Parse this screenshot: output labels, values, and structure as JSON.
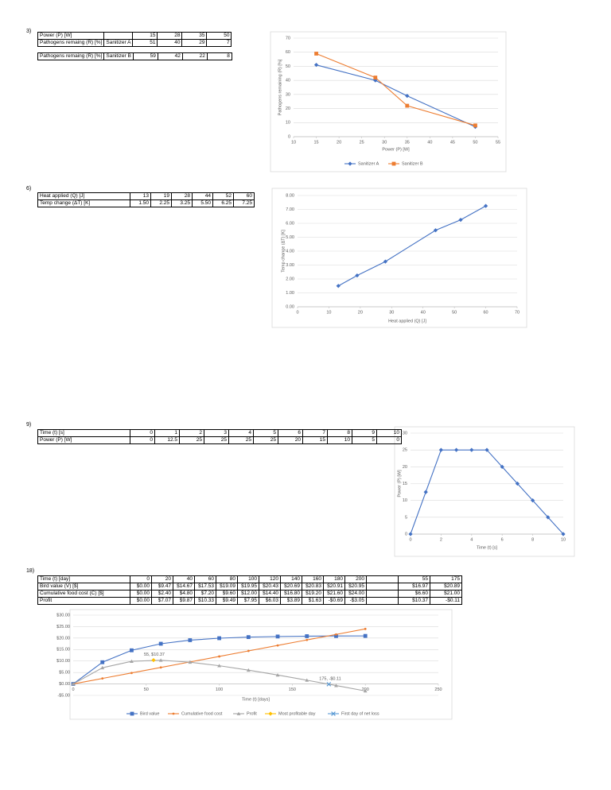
{
  "sections": [
    {
      "label": "3)",
      "tables": [
        {
          "rows": [
            [
              "Power (P) [W]",
              null,
              "15",
              "28",
              "35",
              "50"
            ],
            [
              "Pathogens remaing (R) [%]",
              "Sanitizer A",
              "51",
              "40",
              "29",
              "7"
            ]
          ]
        },
        {
          "rows": [
            [
              "Pathogens remaing (R) [%]",
              "Sanitizer B",
              "59",
              "42",
              "22",
              "8"
            ]
          ]
        }
      ]
    },
    {
      "label": "6)",
      "tables": [
        {
          "rows": [
            [
              "Heat applied (Q) [J]",
              "13",
              "19",
              "28",
              "44",
              "52",
              "60"
            ],
            [
              "Temp change (ΔT) [K]",
              "1.50",
              "2.25",
              "3.25",
              "5.50",
              "6.25",
              "7.25"
            ]
          ]
        }
      ]
    },
    {
      "label": "9)",
      "tables": [
        {
          "rows": [
            [
              "Time (t) [s]",
              "0",
              "1",
              "2",
              "3",
              "4",
              "5",
              "6",
              "7",
              "8",
              "9",
              "10"
            ],
            [
              "Power (P) [W]",
              "0",
              "12.5",
              "25",
              "25",
              "25",
              "25",
              "20",
              "15",
              "10",
              "5",
              "0"
            ]
          ]
        }
      ]
    },
    {
      "label": "18)",
      "tables": [
        {
          "rows": [
            [
              "Time (t) [day]",
              "0",
              "20",
              "40",
              "60",
              "80",
              "100",
              "120",
              "140",
              "160",
              "180",
              "200",
              null,
              "55",
              "175"
            ],
            [
              "Bird value (V) [$]",
              "$0.00",
              "$9.47",
              "$14.67",
              "$17.53",
              "$19.09",
              "$19.95",
              "$20.43",
              "$20.69",
              "$20.83",
              "$20.91",
              "$20.95",
              null,
              "$16.97",
              "$20.89"
            ],
            [
              "Cumulative food cost (C) [$]",
              "$0.00",
              "$2.40",
              "$4.80",
              "$7.20",
              "$9.60",
              "$12.00",
              "$14.40",
              "$16.80",
              "$19.20",
              "$21.60",
              "$24.00",
              null,
              "$6.60",
              "$21.00"
            ],
            [
              "Profit",
              "$0.00",
              "$7.07",
              "$9.87",
              "$10.33",
              "$9.49",
              "$7.95",
              "$6.03",
              "$3.89",
              "$1.63",
              "-$0.69",
              "-$3.05",
              null,
              "$10.37",
              "-$0.11"
            ]
          ]
        }
      ]
    }
  ],
  "chart_data": [
    {
      "type": "line",
      "ylabel": "Pathogens remaining (R) [%]",
      "xlabel": "Power (P) [W]",
      "x": [
        15,
        28,
        35,
        50
      ],
      "series": [
        {
          "name": "Sanitizer A",
          "color": "#4472c4",
          "marker": "diamond",
          "values": [
            51,
            40,
            29,
            7
          ]
        },
        {
          "name": "Sanitizer B",
          "color": "#ed7d31",
          "marker": "square",
          "values": [
            59,
            42,
            22,
            8
          ]
        }
      ],
      "xlim": [
        10,
        55
      ],
      "xticks": [
        10,
        15,
        20,
        25,
        30,
        35,
        40,
        45,
        50,
        55
      ],
      "ylim": [
        0,
        70
      ],
      "yticks": [
        0,
        10,
        20,
        30,
        40,
        50,
        60,
        70
      ],
      "grid": true,
      "legend": "bottom"
    },
    {
      "type": "line",
      "ylabel": "Temp change (ΔT) [K]",
      "xlabel": "Heat applied (Q) [J]",
      "x": [
        13,
        19,
        28,
        44,
        52,
        60
      ],
      "series": [
        {
          "color": "#4472c4",
          "marker": "diamond",
          "values": [
            1.5,
            2.25,
            3.25,
            5.5,
            6.25,
            7.25
          ]
        }
      ],
      "xlim": [
        0,
        70
      ],
      "xticks": [
        0,
        10,
        20,
        30,
        40,
        50,
        60,
        70
      ],
      "ylim": [
        0,
        8
      ],
      "yticks": [
        {
          "value": 0,
          "label": "0.00"
        },
        {
          "value": 1,
          "label": "1.00"
        },
        {
          "value": 2,
          "label": "2.00"
        },
        {
          "value": 3,
          "label": "3.00"
        },
        {
          "value": 4,
          "label": "4.00"
        },
        {
          "value": 5,
          "label": "5.00"
        },
        {
          "value": 6,
          "label": "6.00"
        },
        {
          "value": 7,
          "label": "7.00"
        },
        {
          "value": 8,
          "label": "8.00"
        }
      ],
      "grid": true
    },
    {
      "type": "line",
      "ylabel": "Power (P) [W]",
      "xlabel": "Time (t) [s]",
      "x": [
        0,
        1,
        2,
        3,
        4,
        5,
        6,
        7,
        8,
        9,
        10
      ],
      "series": [
        {
          "color": "#4472c4",
          "marker": "diamond",
          "values": [
            0,
            12.5,
            25,
            25,
            25,
            25,
            20,
            15,
            10,
            5,
            0
          ]
        }
      ],
      "xlim": [
        0,
        10
      ],
      "xticks": [
        0,
        2,
        4,
        6,
        8,
        10
      ],
      "ylim": [
        0,
        30
      ],
      "yticks": [
        0,
        5,
        10,
        15,
        20,
        25,
        30
      ],
      "grid": true
    },
    {
      "type": "line",
      "xlabel": "Time (t) [days]",
      "series": [
        {
          "name": "Bird value",
          "color": "#4472c4",
          "marker": "square",
          "x": [
            0,
            20,
            40,
            60,
            80,
            100,
            120,
            140,
            160,
            180,
            200
          ],
          "values": [
            0,
            9.47,
            14.67,
            17.53,
            19.09,
            19.95,
            20.43,
            20.69,
            20.83,
            20.91,
            20.95
          ]
        },
        {
          "name": "Cumulative food cost",
          "color": "#ed7d31",
          "marker": "circle",
          "x": [
            0,
            20,
            40,
            60,
            80,
            100,
            120,
            140,
            160,
            180,
            200
          ],
          "values": [
            0,
            2.4,
            4.8,
            7.2,
            9.6,
            12,
            14.4,
            16.8,
            19.2,
            21.6,
            24
          ]
        },
        {
          "name": "Profit",
          "color": "#a5a5a5",
          "marker": "triangle",
          "x": [
            0,
            20,
            40,
            60,
            80,
            100,
            120,
            140,
            160,
            180,
            200
          ],
          "values": [
            0,
            7.07,
            9.87,
            10.33,
            9.49,
            7.95,
            6.03,
            3.89,
            1.63,
            -0.69,
            -3.05
          ]
        },
        {
          "name": "Most profitable day",
          "color": "#ffc000",
          "marker": "diamond",
          "x": [
            55
          ],
          "values": [
            10.37
          ],
          "value_labels": [
            "55, $10.37"
          ]
        },
        {
          "name": "First day of net loss",
          "color": "#5b9bd5",
          "marker": "cross",
          "x": [
            175
          ],
          "values": [
            -0.11
          ],
          "value_labels": [
            "175, -$0.11"
          ]
        }
      ],
      "xlim": [
        0,
        250
      ],
      "xticks": [
        0,
        50,
        100,
        150,
        200,
        250
      ],
      "ylim": [
        -5,
        30
      ],
      "yticks": [
        {
          "value": -5,
          "label": "-$5.00"
        },
        {
          "value": 0,
          "label": "$0.00"
        },
        {
          "value": 5,
          "label": "$5.00"
        },
        {
          "value": 10,
          "label": "$10.00"
        },
        {
          "value": 15,
          "label": "$15.00"
        },
        {
          "value": 20,
          "label": "$20.00"
        },
        {
          "value": 25,
          "label": "$25.00"
        },
        {
          "value": 30,
          "label": "$30.00"
        }
      ],
      "grid": true,
      "legend": "bottom"
    }
  ]
}
